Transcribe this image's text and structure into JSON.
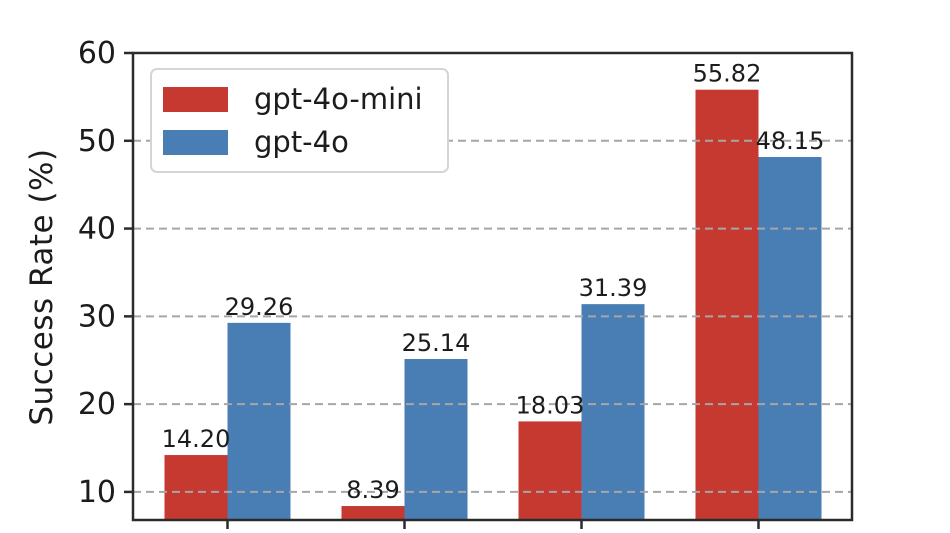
{
  "figure": {
    "background": "#ffffff",
    "axis_color": "#2b2b2b",
    "grid_color": "#a6a6a6",
    "text_color": "#1c1c1c"
  },
  "chart_data": {
    "type": "bar",
    "title": "",
    "xlabel": "",
    "ylabel": "Success Rate (%)",
    "categories": [
      "",
      "",
      "",
      ""
    ],
    "series": [
      {
        "name": "gpt-4o-mini",
        "color": "#c53931",
        "values": [
          14.2,
          8.39,
          18.03,
          55.82
        ]
      },
      {
        "name": "gpt-4o",
        "color": "#487eb4",
        "values": [
          29.26,
          25.14,
          31.39,
          48.15
        ]
      }
    ],
    "value_labels": [
      [
        "14.20",
        "8.39",
        "18.03",
        "55.82"
      ],
      [
        "29.26",
        "25.14",
        "31.39",
        "48.15"
      ]
    ],
    "yticks": [
      10,
      20,
      30,
      40,
      50,
      60
    ],
    "ylim": [
      6.8,
      60
    ],
    "grid": "horizontal dashed",
    "legend_position": "upper left"
  }
}
